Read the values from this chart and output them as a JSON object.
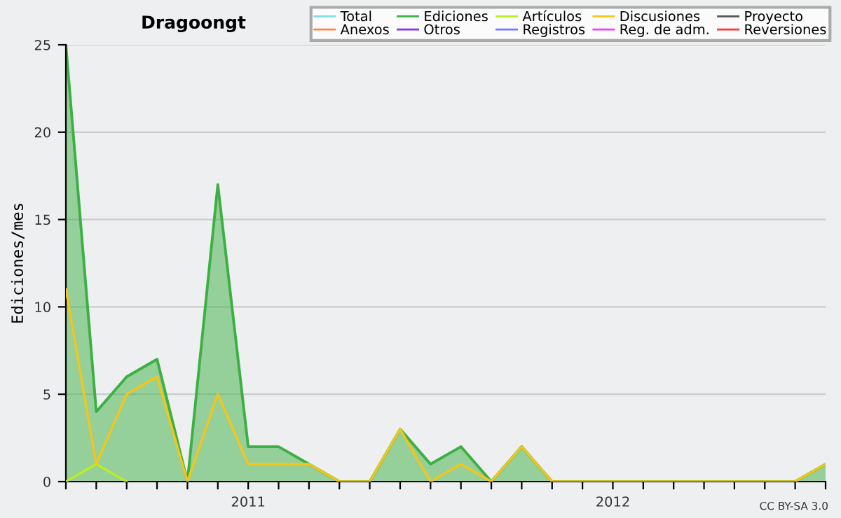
{
  "chart_data": {
    "type": "line",
    "title": "Dragoongt",
    "ylabel": "Ediciones/mes",
    "categories": [
      null,
      null,
      null,
      null,
      null,
      null,
      "2011",
      null,
      null,
      null,
      null,
      null,
      null,
      null,
      null,
      null,
      null,
      null,
      "2012",
      null,
      null,
      null,
      null,
      null,
      null,
      null
    ],
    "series": [
      {
        "name": "Total",
        "color": "#80dde0",
        "values": [
          null,
          null,
          null,
          null,
          null,
          null,
          null,
          null,
          null,
          null,
          null,
          null,
          null,
          null,
          null,
          null,
          null,
          null,
          null,
          null,
          null,
          null,
          null,
          null,
          null,
          null
        ]
      },
      {
        "name": "Ediciones",
        "type": "area",
        "color": "#3cb043",
        "values": [
          25,
          4,
          6,
          7,
          0,
          17,
          2,
          2,
          1,
          0,
          0,
          3,
          1,
          2,
          0,
          2,
          0,
          0,
          0,
          0,
          0,
          0,
          0,
          0,
          0,
          1
        ]
      },
      {
        "name": "Artículos",
        "color": "#bbee22",
        "values": [
          0,
          1,
          0,
          null,
          null,
          null,
          null,
          null,
          null,
          null,
          null,
          null,
          null,
          null,
          null,
          null,
          null,
          null,
          null,
          null,
          null,
          null,
          null,
          null,
          null,
          null
        ]
      },
      {
        "name": "Discusiones",
        "color": "#f5c518",
        "values": [
          11,
          1,
          5,
          6,
          0,
          5,
          1,
          1,
          1,
          0,
          0,
          3,
          0,
          1,
          0,
          2,
          0,
          0,
          0,
          0,
          0,
          0,
          0,
          0,
          0,
          1
        ]
      },
      {
        "name": "Proyecto",
        "color": "#555555",
        "values": [
          null,
          null,
          null,
          null,
          null,
          null,
          null,
          null,
          null,
          null,
          null,
          null,
          null,
          null,
          null,
          null,
          null,
          null,
          null,
          null,
          null,
          null,
          null,
          null,
          null,
          null
        ]
      },
      {
        "name": "Anexos",
        "color": "#ff8844",
        "values": [
          null,
          null,
          null,
          null,
          null,
          null,
          null,
          null,
          null,
          null,
          null,
          null,
          null,
          null,
          null,
          null,
          null,
          null,
          null,
          null,
          null,
          null,
          null,
          null,
          null,
          null
        ]
      },
      {
        "name": "Otros",
        "color": "#8833ee",
        "values": [
          null,
          null,
          null,
          null,
          null,
          null,
          null,
          null,
          null,
          null,
          null,
          null,
          null,
          null,
          null,
          null,
          null,
          null,
          null,
          null,
          null,
          null,
          null,
          null,
          null,
          null
        ]
      },
      {
        "name": "Registros",
        "color": "#7777ff",
        "values": [
          null,
          null,
          null,
          null,
          null,
          null,
          null,
          null,
          null,
          null,
          null,
          null,
          null,
          null,
          null,
          null,
          null,
          null,
          null,
          null,
          null,
          null,
          null,
          null,
          null,
          null
        ]
      },
      {
        "name": "Reg. de adm.",
        "color": "#ee44ee",
        "values": [
          null,
          null,
          null,
          null,
          null,
          null,
          null,
          null,
          null,
          null,
          null,
          null,
          null,
          null,
          null,
          null,
          null,
          null,
          null,
          null,
          null,
          null,
          null,
          null,
          null,
          null
        ]
      },
      {
        "name": "Reversiones",
        "color": "#ff3333",
        "values": [
          null,
          null,
          null,
          null,
          null,
          null,
          null,
          null,
          null,
          null,
          null,
          null,
          null,
          null,
          null,
          null,
          null,
          null,
          null,
          null,
          null,
          null,
          null,
          null,
          null,
          null
        ]
      }
    ],
    "ylim": [
      0,
      25
    ],
    "yticks": [
      0,
      5,
      10,
      15,
      20,
      25
    ],
    "grid": "y",
    "legend": "top right",
    "annotations": [
      "CC BY-SA 3.0"
    ]
  }
}
